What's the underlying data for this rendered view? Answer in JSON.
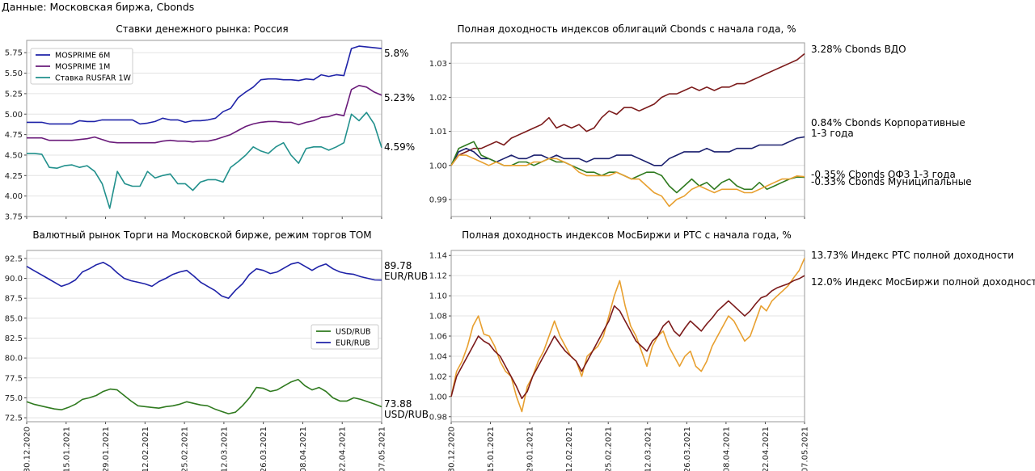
{
  "source_note": "Данные: Московская биржа, Cbonds",
  "date_ticks": [
    "30.12.2020",
    "15.01.2021",
    "29.01.2021",
    "12.02.2021",
    "25.02.2021",
    "12.03.2021",
    "26.03.2021",
    "08.04.2021",
    "22.04.2021",
    "07.05.2021"
  ],
  "colors": {
    "blue": "#1f23a8",
    "purple": "#6a1b7a",
    "teal": "#21908c",
    "red": "#7b1a1a",
    "green": "#2f7a1f",
    "orange": "#e8a030",
    "navy": "#1a1f6e"
  },
  "chart_data": [
    {
      "type": "line",
      "title": "Ставки денежного рынка: Россия",
      "ylim": [
        3.75,
        5.9
      ],
      "yticks": [
        "3.75",
        "4.00",
        "4.25",
        "4.50",
        "4.75",
        "5.00",
        "5.25",
        "5.50",
        "5.75"
      ],
      "legend": "top-left",
      "series": [
        {
          "name": "MOSPRIME 6M",
          "color": "#1f23a8",
          "end_label": "5.8%",
          "values": [
            4.9,
            4.9,
            4.9,
            4.88,
            4.88,
            4.88,
            4.88,
            4.92,
            4.91,
            4.91,
            4.93,
            4.93,
            4.93,
            4.93,
            4.93,
            4.88,
            4.89,
            4.91,
            4.95,
            4.93,
            4.93,
            4.9,
            4.92,
            4.92,
            4.93,
            4.95,
            5.03,
            5.07,
            5.2,
            5.27,
            5.33,
            5.42,
            5.43,
            5.43,
            5.42,
            5.42,
            5.41,
            5.43,
            5.42,
            5.48,
            5.46,
            5.48,
            5.47,
            5.8,
            5.83,
            5.82,
            5.81,
            5.8
          ]
        },
        {
          "name": "MOSPRIME 1M",
          "color": "#6a1b7a",
          "end_label": "5.23%",
          "values": [
            4.71,
            4.71,
            4.71,
            4.68,
            4.68,
            4.68,
            4.68,
            4.69,
            4.7,
            4.72,
            4.69,
            4.66,
            4.65,
            4.65,
            4.65,
            4.65,
            4.65,
            4.65,
            4.67,
            4.68,
            4.67,
            4.67,
            4.66,
            4.67,
            4.67,
            4.69,
            4.72,
            4.75,
            4.8,
            4.85,
            4.88,
            4.9,
            4.91,
            4.91,
            4.9,
            4.9,
            4.87,
            4.9,
            4.92,
            4.96,
            4.97,
            5.0,
            4.98,
            5.3,
            5.35,
            5.33,
            5.27,
            5.23
          ]
        },
        {
          "name": "Ставка RUSFAR 1W",
          "color": "#21908c",
          "end_label": "4.59%",
          "values": [
            4.52,
            4.52,
            4.51,
            4.35,
            4.34,
            4.37,
            4.38,
            4.35,
            4.37,
            4.3,
            4.15,
            3.85,
            4.3,
            4.15,
            4.12,
            4.12,
            4.3,
            4.22,
            4.25,
            4.27,
            4.15,
            4.15,
            4.07,
            4.17,
            4.2,
            4.2,
            4.17,
            4.35,
            4.42,
            4.5,
            4.6,
            4.55,
            4.52,
            4.6,
            4.65,
            4.5,
            4.4,
            4.58,
            4.6,
            4.6,
            4.56,
            4.6,
            4.65,
            5.0,
            4.92,
            5.02,
            4.88,
            4.59
          ]
        }
      ]
    },
    {
      "type": "line",
      "title": "Полная доходность индексов облигаций Cbonds с начала года, %",
      "ylim": [
        0.985,
        1.036
      ],
      "yticks": [
        "0.99",
        "1.00",
        "1.01",
        "1.02",
        "1.03"
      ],
      "series": [
        {
          "name": "Cbonds ВДО",
          "color": "#7b1a1a",
          "end_label": [
            "3.28% Cbonds ВДО"
          ],
          "values": [
            1.0,
            1.003,
            1.004,
            1.005,
            1.005,
            1.006,
            1.007,
            1.006,
            1.008,
            1.009,
            1.01,
            1.011,
            1.012,
            1.014,
            1.011,
            1.012,
            1.011,
            1.012,
            1.01,
            1.011,
            1.014,
            1.016,
            1.015,
            1.017,
            1.017,
            1.016,
            1.017,
            1.018,
            1.02,
            1.021,
            1.021,
            1.022,
            1.023,
            1.022,
            1.023,
            1.022,
            1.023,
            1.023,
            1.024,
            1.024,
            1.025,
            1.026,
            1.027,
            1.028,
            1.029,
            1.03,
            1.031,
            1.0328
          ]
        },
        {
          "name": "Cbonds Корпоративные 1-3 года",
          "color": "#1a1f6e",
          "end_label": [
            "0.84% Cbonds Корпоративные",
            "1-3 года"
          ],
          "values": [
            1.0,
            1.004,
            1.005,
            1.004,
            1.002,
            1.002,
            1.001,
            1.002,
            1.003,
            1.002,
            1.002,
            1.003,
            1.003,
            1.002,
            1.003,
            1.002,
            1.002,
            1.002,
            1.001,
            1.002,
            1.002,
            1.002,
            1.003,
            1.003,
            1.003,
            1.002,
            1.001,
            1.0,
            1.0,
            1.002,
            1.003,
            1.004,
            1.004,
            1.004,
            1.005,
            1.004,
            1.004,
            1.004,
            1.005,
            1.005,
            1.005,
            1.006,
            1.006,
            1.006,
            1.006,
            1.007,
            1.008,
            1.0084
          ]
        },
        {
          "name": "Cbonds ОФЗ 1-3 года",
          "color": "#2f7a1f",
          "end_label": [
            "-0.35% Cbonds ОФЗ 1-3 года"
          ],
          "values": [
            1.0,
            1.005,
            1.006,
            1.007,
            1.003,
            1.002,
            1.001,
            1.0,
            1.0,
            1.001,
            1.001,
            1.0,
            1.001,
            1.002,
            1.001,
            1.001,
            1.0,
            0.999,
            0.998,
            0.998,
            0.997,
            0.998,
            0.998,
            0.997,
            0.996,
            0.997,
            0.998,
            0.998,
            0.997,
            0.994,
            0.992,
            0.994,
            0.996,
            0.994,
            0.995,
            0.993,
            0.995,
            0.996,
            0.994,
            0.993,
            0.993,
            0.995,
            0.993,
            0.994,
            0.995,
            0.996,
            0.9966,
            0.9965
          ]
        },
        {
          "name": "Cbonds Муниципальные",
          "color": "#e8a030",
          "end_label": [
            "-0.33% Cbonds Муниципальные"
          ],
          "values": [
            1.0,
            1.003,
            1.003,
            1.002,
            1.001,
            1.0,
            1.001,
            1.0,
            1.0,
            1.0,
            1.0,
            1.001,
            1.001,
            1.002,
            1.002,
            1.001,
            1.0,
            0.998,
            0.997,
            0.997,
            0.997,
            0.997,
            0.998,
            0.997,
            0.996,
            0.996,
            0.994,
            0.992,
            0.991,
            0.988,
            0.99,
            0.991,
            0.993,
            0.994,
            0.993,
            0.992,
            0.993,
            0.993,
            0.993,
            0.992,
            0.992,
            0.993,
            0.994,
            0.995,
            0.996,
            0.996,
            0.9969,
            0.9967
          ]
        }
      ]
    },
    {
      "type": "line",
      "title": "Валютный рынок Торги на Московской бирже, режим торгов ТОМ",
      "ylim": [
        72.0,
        93.5
      ],
      "yticks": [
        "72.5",
        "75.0",
        "77.5",
        "80.0",
        "82.5",
        "85.0",
        "87.5",
        "90.0",
        "92.5"
      ],
      "legend": "center-right",
      "series": [
        {
          "name": "USD/RUB",
          "color": "#2f7a1f",
          "end_label": [
            "73.88",
            "USD/RUB"
          ],
          "values": [
            74.5,
            74.2,
            74.0,
            73.8,
            73.6,
            73.5,
            73.8,
            74.2,
            74.8,
            75.0,
            75.3,
            75.8,
            76.1,
            76.0,
            75.3,
            74.6,
            74.0,
            73.9,
            73.8,
            73.7,
            73.9,
            74.0,
            74.2,
            74.5,
            74.3,
            74.1,
            74.0,
            73.6,
            73.3,
            73.0,
            73.2,
            74.0,
            75.0,
            76.3,
            76.2,
            75.8,
            76.0,
            76.5,
            77.0,
            77.3,
            76.5,
            76.0,
            76.3,
            75.8,
            75.0,
            74.6,
            74.6,
            75.0,
            74.8,
            74.5,
            74.2,
            73.88
          ]
        },
        {
          "name": "EUR/RUB",
          "color": "#1f23a8",
          "end_label": [
            "89.78",
            "EUR/RUB"
          ],
          "values": [
            91.5,
            91.0,
            90.5,
            90.0,
            89.5,
            89.0,
            89.3,
            89.8,
            90.8,
            91.2,
            91.7,
            92.0,
            91.5,
            90.7,
            90.0,
            89.7,
            89.5,
            89.3,
            89.0,
            89.6,
            90.0,
            90.5,
            90.8,
            91.0,
            90.3,
            89.5,
            89.0,
            88.5,
            87.8,
            87.5,
            88.5,
            89.3,
            90.5,
            91.2,
            91.0,
            90.6,
            90.8,
            91.3,
            91.8,
            92.0,
            91.5,
            91.0,
            91.5,
            91.8,
            91.2,
            90.8,
            90.6,
            90.5,
            90.2,
            90.0,
            89.8,
            89.78
          ]
        }
      ]
    },
    {
      "type": "line",
      "title": "Полная доходность индексов МосБиржи и РТС с начала года, %",
      "ylim": [
        0.975,
        1.145
      ],
      "yticks": [
        "0.98",
        "1.00",
        "1.02",
        "1.04",
        "1.06",
        "1.08",
        "1.10",
        "1.12",
        "1.14"
      ],
      "series": [
        {
          "name": "Индекс РТС полной доходности",
          "color": "#e8a030",
          "end_label": [
            "13.73% Индекс РТС полной доходности"
          ],
          "values": [
            1.0,
            1.025,
            1.035,
            1.05,
            1.07,
            1.08,
            1.062,
            1.06,
            1.05,
            1.035,
            1.025,
            1.02,
            1.0,
            0.985,
            1.01,
            1.02,
            1.035,
            1.045,
            1.06,
            1.075,
            1.06,
            1.05,
            1.04,
            1.035,
            1.02,
            1.04,
            1.045,
            1.05,
            1.06,
            1.08,
            1.1,
            1.115,
            1.09,
            1.07,
            1.06,
            1.045,
            1.03,
            1.05,
            1.06,
            1.065,
            1.05,
            1.04,
            1.03,
            1.04,
            1.045,
            1.03,
            1.025,
            1.035,
            1.05,
            1.06,
            1.07,
            1.08,
            1.075,
            1.065,
            1.055,
            1.06,
            1.075,
            1.09,
            1.085,
            1.095,
            1.1,
            1.105,
            1.11,
            1.118,
            1.125,
            1.1373
          ]
        },
        {
          "name": "Индекс МосБиржи полной доходности",
          "color": "#7b1a1a",
          "end_label": [
            "12.0% Индекс МосБиржи полной доходности"
          ],
          "values": [
            1.0,
            1.02,
            1.03,
            1.04,
            1.05,
            1.06,
            1.055,
            1.052,
            1.045,
            1.04,
            1.03,
            1.02,
            1.01,
            0.998,
            1.005,
            1.02,
            1.03,
            1.04,
            1.05,
            1.06,
            1.052,
            1.045,
            1.04,
            1.035,
            1.025,
            1.035,
            1.045,
            1.055,
            1.065,
            1.075,
            1.09,
            1.085,
            1.075,
            1.065,
            1.055,
            1.05,
            1.045,
            1.055,
            1.06,
            1.07,
            1.075,
            1.065,
            1.06,
            1.068,
            1.075,
            1.07,
            1.065,
            1.072,
            1.078,
            1.085,
            1.09,
            1.095,
            1.09,
            1.085,
            1.08,
            1.085,
            1.092,
            1.098,
            1.1,
            1.105,
            1.108,
            1.11,
            1.112,
            1.115,
            1.117,
            1.12
          ]
        }
      ]
    }
  ]
}
